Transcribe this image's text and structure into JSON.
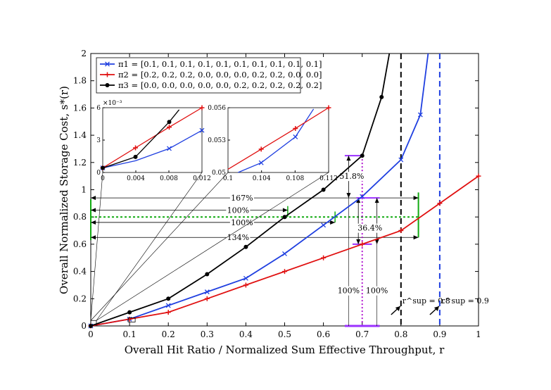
{
  "chart_data": {
    "type": "line",
    "xlabel": "Overall Hit Ratio / Normalized Sum Effective Throughput, r",
    "ylabel": "Overall Normalized Storage Cost, s*(r)",
    "xlim": [
      0,
      1
    ],
    "ylim": [
      0,
      2
    ],
    "xticks": [
      "0",
      "0.1",
      "0.2",
      "0.3",
      "0.4",
      "0.5",
      "0.6",
      "0.7",
      "0.8",
      "0.9",
      "1"
    ],
    "yticks": [
      "0",
      "0.2",
      "0.4",
      "0.6",
      "0.8",
      "1",
      "1.2",
      "1.4",
      "1.6",
      "1.8",
      "2"
    ],
    "series": [
      {
        "name": "π1 = [0.1, 0.1, 0.1, 0.1, 0.1, 0.1, 0.1, 0.1, 0.1, 0.1]",
        "color": "#1f3fe0",
        "marker": "x",
        "x": [
          0,
          0.1,
          0.2,
          0.3,
          0.4,
          0.5,
          0.6,
          0.7,
          0.8,
          0.85,
          0.87
        ],
        "y": [
          0,
          0.05,
          0.15,
          0.25,
          0.35,
          0.53,
          0.74,
          0.95,
          1.22,
          1.55,
          2.0
        ]
      },
      {
        "name": "π2 = [0.2, 0.2, 0.2, 0.0, 0.0, 0.0, 0.2, 0.2, 0.0, 0.0]",
        "color": "#e01010",
        "marker": "+",
        "x": [
          0,
          0.1,
          0.2,
          0.3,
          0.4,
          0.5,
          0.6,
          0.7,
          0.8,
          0.9,
          1.0
        ],
        "y": [
          0,
          0.05,
          0.1,
          0.2,
          0.3,
          0.4,
          0.5,
          0.6,
          0.7,
          0.9,
          1.1
        ]
      },
      {
        "name": "π3 = [0.0, 0.0, 0.0, 0.0, 0.0, 0.2, 0.2, 0.2, 0.2, 0.2]",
        "color": "#000000",
        "marker": "o",
        "x": [
          0,
          0.1,
          0.2,
          0.3,
          0.4,
          0.5,
          0.6,
          0.7,
          0.75,
          0.77
        ],
        "y": [
          0,
          0.1,
          0.2,
          0.38,
          0.58,
          0.8,
          1.0,
          1.25,
          1.68,
          2.0
        ]
      }
    ],
    "legend": {
      "location": "top-left"
    },
    "vlines": [
      {
        "x": 0.8,
        "color": "#000000",
        "label": "r^sup = 0.8"
      },
      {
        "x": 0.9,
        "color": "#1f3fe0",
        "label": "r^sup = 0.9"
      }
    ],
    "annotations": [
      "167%",
      "100%",
      "100%",
      "134%",
      "51.8%",
      "36.4%",
      "100%",
      "100%"
    ],
    "inset_left": {
      "xticks": [
        "0",
        "0.004",
        "0.008",
        "0.012"
      ],
      "yticks": [
        "0",
        "3",
        "6"
      ],
      "exponent": "×10⁻³"
    },
    "inset_right": {
      "xticks": [
        "0.1",
        "0.104",
        "0.108",
        "0.112"
      ],
      "yticks": [
        "0.05",
        "0.053",
        "0.056"
      ]
    }
  }
}
